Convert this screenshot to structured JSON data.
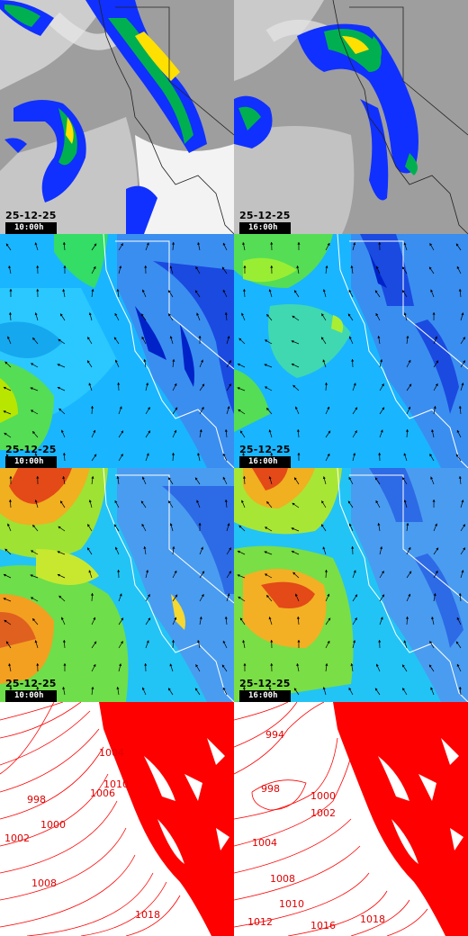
{
  "panels": {
    "precip_a": {
      "date": "25-12-25",
      "time": "10:00h"
    },
    "precip_b": {
      "date": "25-12-25",
      "time": "16:00h"
    },
    "wind_low_a": {
      "date": "25-12-25",
      "time": "10:00h"
    },
    "wind_low_b": {
      "date": "25-12-25",
      "time": "16:00h"
    },
    "wind_high_a": {
      "date": "25-12-25",
      "time": "10:00h"
    },
    "wind_high_b": {
      "date": "25-12-25",
      "time": "16:00h"
    }
  },
  "pressure_left_labels": [
    "998",
    "1000",
    "1002",
    "1004",
    "1006",
    "1008",
    "1010",
    "1018"
  ],
  "pressure_right_labels": [
    "994",
    "998",
    "1000",
    "1002",
    "1004",
    "1008",
    "1010",
    "1012",
    "1016",
    "1018"
  ],
  "colors": {
    "contour": "#ff0000",
    "precip_heavy": "#ffe000",
    "precip_mid": "#00c000",
    "precip_light": "#0040ff",
    "cloud": "#b0b0b0"
  }
}
